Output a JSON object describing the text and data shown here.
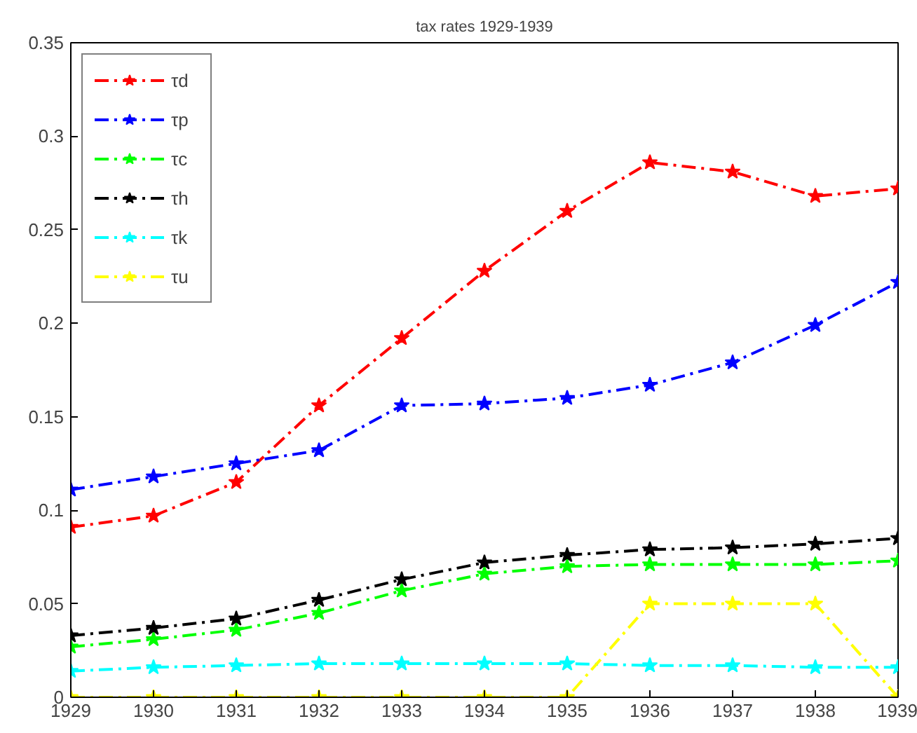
{
  "chart_data": {
    "type": "line",
    "title": "tax rates 1929-1939",
    "x": [
      1929,
      1930,
      1931,
      1932,
      1933,
      1934,
      1935,
      1936,
      1937,
      1938,
      1939
    ],
    "series": [
      {
        "name": "τd",
        "color": "#ff0000",
        "values": [
          0.091,
          0.097,
          0.115,
          0.156,
          0.192,
          0.228,
          0.26,
          0.286,
          0.281,
          0.268,
          0.272
        ]
      },
      {
        "name": "τp",
        "color": "#0000ff",
        "values": [
          0.111,
          0.118,
          0.125,
          0.132,
          0.156,
          0.157,
          0.16,
          0.167,
          0.179,
          0.199,
          0.222
        ]
      },
      {
        "name": "τc",
        "color": "#00ff00",
        "values": [
          0.027,
          0.031,
          0.036,
          0.045,
          0.057,
          0.066,
          0.07,
          0.071,
          0.071,
          0.071,
          0.073
        ]
      },
      {
        "name": "τh",
        "color": "#000000",
        "values": [
          0.033,
          0.037,
          0.042,
          0.052,
          0.063,
          0.072,
          0.076,
          0.079,
          0.08,
          0.082,
          0.085
        ]
      },
      {
        "name": "τk",
        "color": "#00ffff",
        "values": [
          0.014,
          0.016,
          0.017,
          0.018,
          0.018,
          0.018,
          0.018,
          0.017,
          0.017,
          0.016,
          0.016
        ]
      },
      {
        "name": "τu",
        "color": "#ffff00",
        "values": [
          0,
          0,
          0,
          0,
          0,
          0,
          0,
          0.05,
          0.05,
          0.05,
          0
        ]
      }
    ],
    "xlim": [
      1929,
      1939
    ],
    "xticks": [
      1929,
      1930,
      1931,
      1932,
      1933,
      1934,
      1935,
      1936,
      1937,
      1938,
      1939
    ],
    "ylim": [
      0,
      0.35
    ],
    "yticks": [
      0,
      0.05,
      0.1,
      0.15,
      0.2,
      0.25,
      0.3,
      0.35
    ],
    "grid": false,
    "legend": "top left",
    "marker": "star",
    "line_style": "dashed"
  }
}
